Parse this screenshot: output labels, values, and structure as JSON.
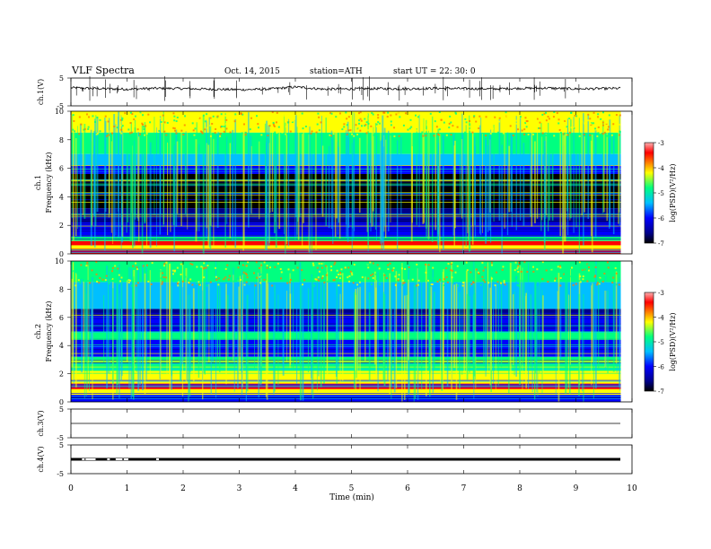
{
  "header": {
    "title": "VLF  Spectra",
    "date": "Oct. 14, 2015",
    "station": "station=ATH",
    "start": "start  UT  =   22: 30: 0"
  },
  "chart_data": [
    {
      "type": "line",
      "panel": "ch1-waveform",
      "ylabel": "ch.1(V)",
      "ylim": [
        -5,
        5
      ],
      "yticks": [
        5,
        -5
      ],
      "series": [
        {
          "x": [
            0,
            0.5,
            1,
            1.5,
            2,
            2.5,
            3,
            3.5,
            4,
            4.5,
            5,
            5.5,
            6,
            6.5,
            7,
            7.5,
            8,
            8.5,
            9,
            9.5,
            9.8
          ],
          "values": [
            1.5,
            1.2,
            1.0,
            1.3,
            1.2,
            1.0,
            0.8,
            1.0,
            1.8,
            1.0,
            1.1,
            1.2,
            1.1,
            1.3,
            1.2,
            1.1,
            1.3,
            1.4,
            1.1,
            1.2,
            1.3
          ]
        }
      ]
    },
    {
      "type": "heatmap",
      "panel": "ch1-spectrogram",
      "ylabel": "Frequency  (kHz)",
      "channel_label": "ch.1",
      "ylim": [
        0,
        10
      ],
      "yticks": [
        0,
        2,
        4,
        6,
        8,
        10
      ],
      "colorbar": {
        "label": "log(PSD)(V²/Hz)",
        "range": [
          -7,
          -3
        ],
        "ticks": [
          -3,
          -4,
          -5,
          -6,
          -7
        ]
      }
    },
    {
      "type": "heatmap",
      "panel": "ch2-spectrogram",
      "ylabel": "Frequency  (kHz)",
      "channel_label": "ch.2",
      "ylim": [
        0,
        10
      ],
      "yticks": [
        0,
        2,
        4,
        6,
        8,
        10
      ],
      "colorbar": {
        "label": "log(PSD)(V²/Hz)",
        "range": [
          -7,
          -3
        ],
        "ticks": [
          -3,
          -4,
          -5,
          -6,
          -7
        ]
      }
    },
    {
      "type": "line",
      "panel": "ch3-waveform",
      "ylabel": "ch.3(V)",
      "ylim": [
        -5,
        5
      ],
      "yticks": [
        5,
        -5
      ],
      "series": [
        {
          "x": [
            0,
            9.8
          ],
          "values": [
            0,
            0
          ]
        }
      ]
    },
    {
      "type": "line",
      "panel": "ch4-waveform",
      "ylabel": "ch.4(V)",
      "ylim": [
        -5,
        5
      ],
      "yticks": [
        5,
        -5
      ],
      "series": [
        {
          "x": [
            0,
            9.8
          ],
          "values": [
            0,
            0
          ]
        }
      ]
    }
  ],
  "xaxis": {
    "label": "Time  (min)",
    "range": [
      0,
      10
    ],
    "ticks": [
      0,
      1,
      2,
      3,
      4,
      5,
      6,
      7,
      8,
      9,
      10
    ]
  },
  "colors": {
    "trace": "#000000",
    "colormap": [
      "#000000",
      "#00008b",
      "#0000ff",
      "#00bfff",
      "#00ff80",
      "#ffff00",
      "#ff8000",
      "#ff0000",
      "#ffb0b0"
    ]
  }
}
